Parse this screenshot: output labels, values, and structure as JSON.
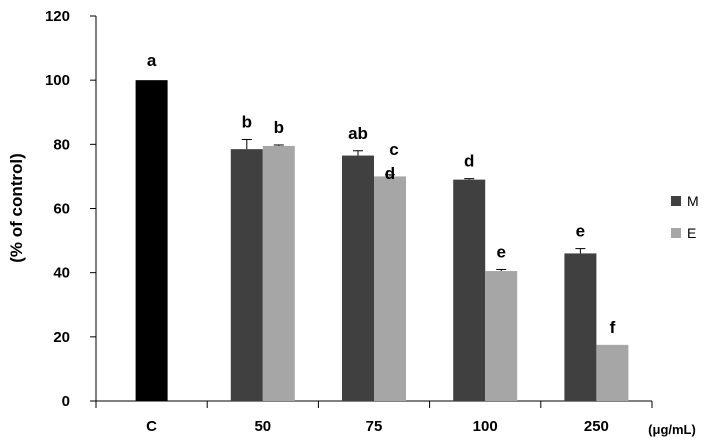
{
  "chart_data": {
    "type": "bar",
    "ylabel": "(% of control)",
    "x_unit_label": "(μg/mL)",
    "ylim": [
      0,
      120
    ],
    "yticks": [
      0,
      20,
      40,
      60,
      80,
      100,
      120
    ],
    "grid": false,
    "legend_position": "right",
    "categories": [
      "C",
      "50",
      "75",
      "100",
      "250"
    ],
    "control": {
      "category": "C",
      "value": 100,
      "label": "a",
      "color": "#000000"
    },
    "series": [
      {
        "name": "M",
        "color": "#404040",
        "values": [
          null,
          78.5,
          76.5,
          69,
          46
        ],
        "errors": [
          null,
          3,
          1.5,
          0.3,
          1.5
        ],
        "labels": [
          null,
          "b",
          "ab",
          "d",
          "e"
        ]
      },
      {
        "name": "E",
        "color": "#a6a6a6",
        "values": [
          null,
          79.5,
          70,
          40.5,
          17.5
        ],
        "errors": [
          null,
          0.3,
          0.5,
          0.5,
          0
        ],
        "labels": [
          null,
          "b",
          "c\nd",
          "e",
          "f"
        ]
      }
    ]
  }
}
